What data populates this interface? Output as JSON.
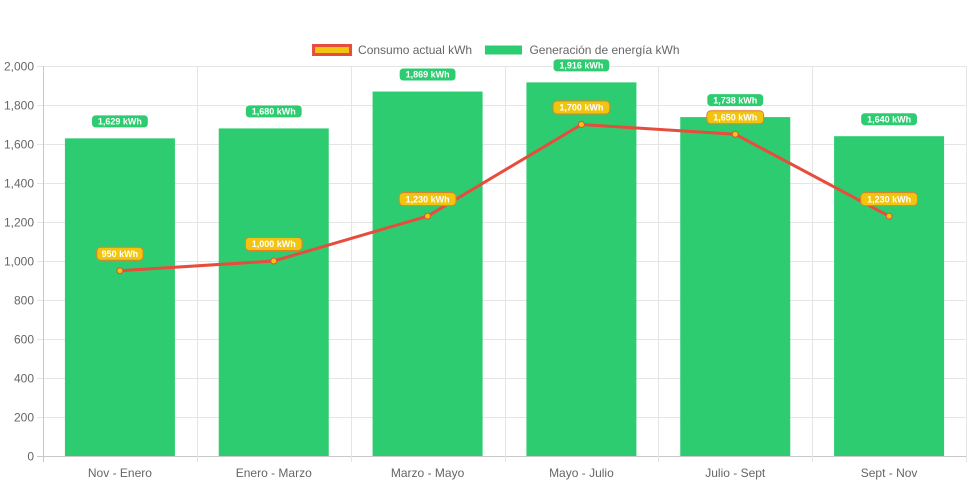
{
  "chart_data": {
    "type": "bar",
    "categories": [
      "Nov - Enero",
      "Enero - Marzo",
      "Marzo - Mayo",
      "Mayo - Julio",
      "Julio - Sept",
      "Sept - Nov"
    ],
    "series": [
      {
        "name": "Consumo actual kWh",
        "type": "line",
        "values": [
          950,
          1000,
          1230,
          1700,
          1650,
          1230
        ],
        "labels": [
          "950 kWh",
          "1,000 kWh",
          "1,230 kWh",
          "1,700 kWh",
          "1,650 kWh",
          "1,230 kWh"
        ],
        "color": "#e74c3c",
        "fill": "#f1c40f"
      },
      {
        "name": "Generación de energía kWh",
        "type": "bar",
        "values": [
          1629,
          1680,
          1869,
          1916,
          1738,
          1640
        ],
        "labels": [
          "1,629 kWh",
          "1,680 kWh",
          "1,869 kWh",
          "1,916 kWh",
          "1,738 kWh",
          "1,640 kWh"
        ],
        "color": "#2ecc71"
      }
    ],
    "ylim": [
      0,
      2000
    ],
    "yticks": [
      0,
      200,
      400,
      600,
      800,
      1000,
      1200,
      1400,
      1600,
      1800,
      2000
    ],
    "ytick_labels": [
      "0",
      "200",
      "400",
      "600",
      "800",
      "1,000",
      "1,200",
      "1,400",
      "1,600",
      "1,800",
      "2,000"
    ],
    "grid": true,
    "legend_position": "top-center"
  }
}
